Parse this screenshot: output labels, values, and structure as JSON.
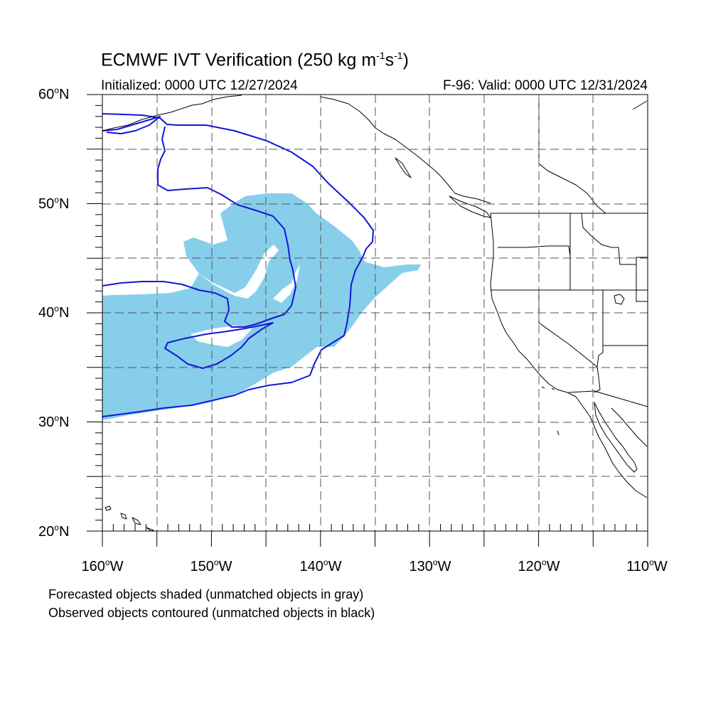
{
  "title": {
    "main": "ECMWF IVT Verification (250 kg m",
    "exp1": "-1",
    "mid": "s",
    "exp2": "-1",
    "end": ")"
  },
  "initialized": "Initialized: 0000 UTC 12/27/2024",
  "valid": "F-96: Valid: 0000 UTC 12/31/2024",
  "lat_labels": [
    {
      "value": "60",
      "suffix": "N"
    },
    {
      "value": "50",
      "suffix": "N"
    },
    {
      "value": "40",
      "suffix": "N"
    },
    {
      "value": "30",
      "suffix": "N"
    },
    {
      "value": "20",
      "suffix": "N"
    }
  ],
  "lon_labels": [
    {
      "value": "160",
      "suffix": "W"
    },
    {
      "value": "150",
      "suffix": "W"
    },
    {
      "value": "140",
      "suffix": "W"
    },
    {
      "value": "130",
      "suffix": "W"
    },
    {
      "value": "120",
      "suffix": "W"
    },
    {
      "value": "110",
      "suffix": "W"
    }
  ],
  "degree_symbol": "o",
  "footer": {
    "line1": "Forecasted objects shaded (unmatched objects in gray)",
    "line2": "Observed objects contoured (unmatched objects in black)"
  },
  "colors": {
    "forecast_fill": "#87ceeb",
    "observed_contour": "#1515d8",
    "coast": "#000000",
    "grid": "#555555"
  }
}
